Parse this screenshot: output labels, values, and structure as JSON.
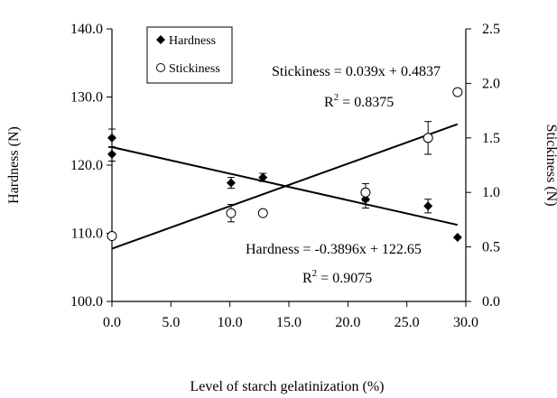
{
  "chart_data": {
    "type": "scatter",
    "xlabel": "Level of starch gelatinization (%)",
    "ylabel_left": "Hardness (N)",
    "ylabel_right": "Stickiness (N)",
    "xlim": [
      0,
      30
    ],
    "ylim_left": [
      100,
      140
    ],
    "ylim_right": [
      0,
      2.5
    ],
    "x_ticks": [
      "0.0",
      "5.0",
      "10.0",
      "15.0",
      "20.0",
      "25.0",
      "30.0"
    ],
    "y_left_ticks": [
      "100.0",
      "110.0",
      "120.0",
      "130.0",
      "140.0"
    ],
    "y_right_ticks": [
      "0.0",
      "0.5",
      "1.0",
      "1.5",
      "2.0",
      "2.5"
    ],
    "legend": {
      "position": "top-left"
    },
    "series": [
      {
        "name": "Hardness",
        "axis": "left",
        "marker": "filled-diamond",
        "points": [
          {
            "x": 0,
            "y": 124.0,
            "err": 1.3
          },
          {
            "x": 0,
            "y": 121.6,
            "err": 1.0
          },
          {
            "x": 10.1,
            "y": 117.4,
            "err": 0.8
          },
          {
            "x": 12.8,
            "y": 118.2,
            "err": 0.6
          },
          {
            "x": 21.5,
            "y": 115.0,
            "err": 1.3
          },
          {
            "x": 26.8,
            "y": 114.0,
            "err": 1.0
          },
          {
            "x": 29.3,
            "y": 109.4,
            "err": 0
          }
        ],
        "trend": {
          "slope": -0.3896,
          "intercept": 122.65
        }
      },
      {
        "name": "Stickiness",
        "axis": "right",
        "marker": "open-circle",
        "points": [
          {
            "x": 0,
            "y": 0.6,
            "err": 0
          },
          {
            "x": 10.1,
            "y": 0.81,
            "err": 0.08
          },
          {
            "x": 12.8,
            "y": 0.81,
            "err": 0
          },
          {
            "x": 21.5,
            "y": 1.0,
            "err": 0.08
          },
          {
            "x": 26.8,
            "y": 1.5,
            "err": 0.15
          },
          {
            "x": 29.3,
            "y": 1.92,
            "err": 0
          }
        ],
        "trend": {
          "slope": 0.039,
          "intercept": 0.4837
        }
      }
    ],
    "annotations": {
      "stickiness_equation": "Stickiness = 0.039x + 0.4837",
      "stickiness_r2_prefix": "R",
      "stickiness_r2_value": " = 0.8375",
      "hardness_equation": "Hardness = -0.3896x + 122.65",
      "hardness_r2_prefix": "R",
      "hardness_r2_value": " = 0.9075",
      "r2_superscript": "2"
    }
  }
}
